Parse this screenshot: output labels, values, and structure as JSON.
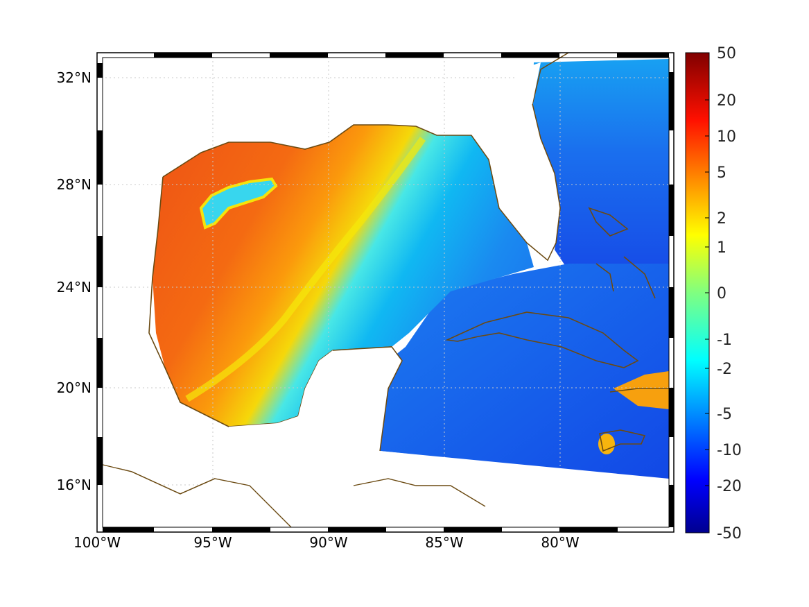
{
  "map": {
    "lat_ticks": [
      "32°N",
      "28°N",
      "24°N",
      "20°N",
      "16°N"
    ],
    "lon_ticks": [
      "100°W",
      "95°W",
      "90°W",
      "85°W",
      "80°W"
    ],
    "extent": {
      "lon_min": -100,
      "lon_max": -75.2,
      "lat_min": 14.3,
      "lat_max": 33
    },
    "grid": true,
    "coastline_color": "#6b4a12"
  },
  "colorbar": {
    "labels": [
      "50",
      "20",
      "10",
      "5",
      "2",
      "1",
      "0",
      "-1",
      "-2",
      "-5",
      "-10",
      "-20",
      "-50"
    ],
    "range": [
      -50,
      50
    ],
    "colormap": "jet",
    "placement": "right"
  }
}
